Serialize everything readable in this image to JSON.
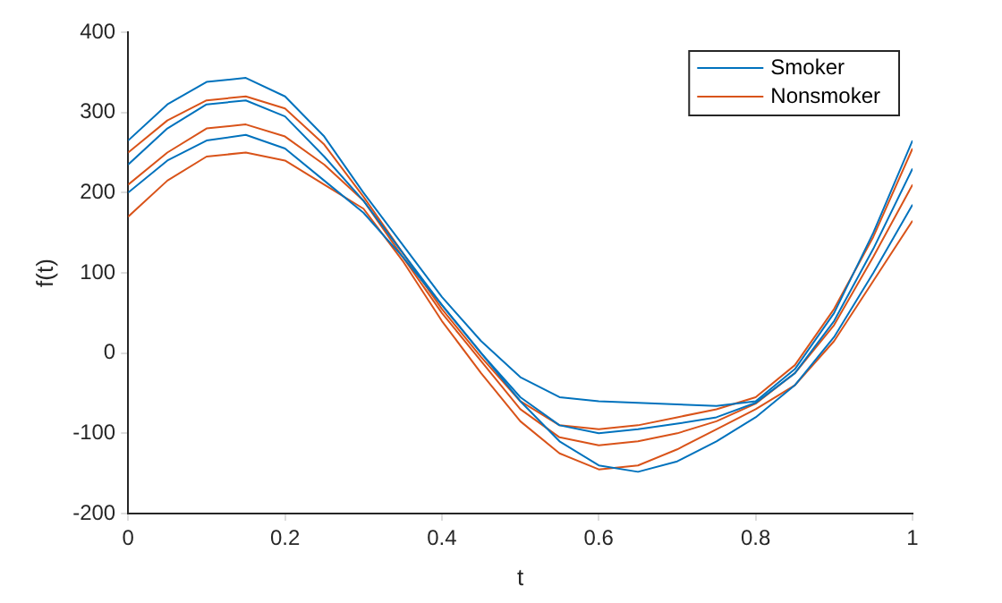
{
  "chart_data": {
    "type": "line",
    "xlabel": "t",
    "ylabel": "f(t)",
    "x": [
      0,
      0.05,
      0.1,
      0.15,
      0.2,
      0.25,
      0.3,
      0.35,
      0.4,
      0.45,
      0.5,
      0.55,
      0.6,
      0.65,
      0.7,
      0.75,
      0.8,
      0.85,
      0.9,
      0.95,
      1
    ],
    "series": [
      {
        "name": "Smoker",
        "color": "#0072bd",
        "values": [
          265,
          310,
          338,
          343,
          320,
          270,
          200,
          135,
          70,
          15,
          -30,
          -55,
          -60,
          -62,
          -64,
          -66,
          -60,
          -20,
          50,
          150,
          265
        ]
      },
      {
        "color": "#0072bd",
        "values": [
          235,
          280,
          310,
          315,
          295,
          245,
          190,
          125,
          60,
          0,
          -55,
          -90,
          -100,
          -95,
          -88,
          -80,
          -62,
          -25,
          40,
          130,
          230
        ]
      },
      {
        "color": "#0072bd",
        "values": [
          200,
          240,
          265,
          272,
          255,
          215,
          175,
          120,
          60,
          0,
          -60,
          -110,
          -140,
          -148,
          -135,
          -110,
          -80,
          -40,
          20,
          100,
          185
        ]
      },
      {
        "name": "Nonsmoker",
        "color": "#d95319",
        "values": [
          250,
          290,
          315,
          320,
          305,
          260,
          195,
          125,
          55,
          -5,
          -60,
          -90,
          -95,
          -90,
          -80,
          -70,
          -55,
          -15,
          55,
          145,
          255
        ]
      },
      {
        "color": "#d95319",
        "values": [
          210,
          250,
          280,
          285,
          270,
          235,
          190,
          120,
          50,
          -10,
          -70,
          -105,
          -115,
          -110,
          -100,
          -85,
          -63,
          -25,
          35,
          120,
          210
        ]
      },
      {
        "color": "#d95319",
        "values": [
          170,
          215,
          245,
          250,
          240,
          210,
          180,
          115,
          40,
          -25,
          -85,
          -125,
          -145,
          -140,
          -120,
          -95,
          -70,
          -40,
          15,
          90,
          165
        ]
      }
    ],
    "xlim": [
      0,
      1
    ],
    "xticks": [
      0,
      0.2,
      0.4,
      0.6,
      0.8,
      1
    ],
    "ylim": [
      -200,
      400
    ],
    "yticks": [
      -200,
      -100,
      0,
      100,
      200,
      300,
      400
    ],
    "grid": false,
    "legend": "top right",
    "marker": "none",
    "line_style": "solid"
  }
}
